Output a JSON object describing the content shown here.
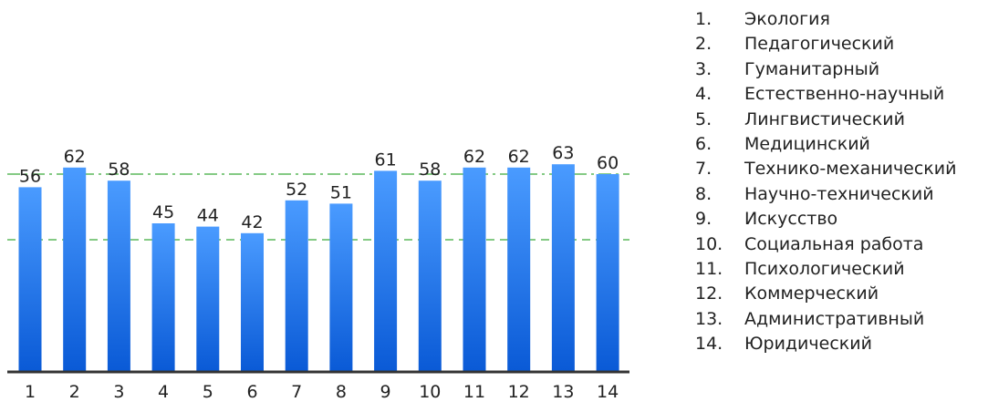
{
  "chart_data": {
    "type": "bar",
    "categories": [
      "1",
      "2",
      "3",
      "4",
      "5",
      "6",
      "7",
      "8",
      "9",
      "10",
      "11",
      "12",
      "13",
      "14"
    ],
    "values": [
      56,
      62,
      58,
      45,
      44,
      42,
      52,
      51,
      61,
      58,
      62,
      62,
      63,
      60
    ],
    "ylim": [
      0,
      100
    ],
    "reference_lines": [
      {
        "value": 60,
        "style": "dash-dot",
        "color": "#5cb85c"
      },
      {
        "value": 40,
        "style": "dashed",
        "color": "#5cb85c"
      }
    ],
    "bar_color_top": "#4a9bff",
    "bar_color_bottom": "#0a5ad6",
    "axis_color": "#333333",
    "grid": false,
    "legend_position": "right",
    "legend": [
      {
        "num": "1.",
        "label": "Экология"
      },
      {
        "num": "2.",
        "label": "Педагогический"
      },
      {
        "num": "3.",
        "label": "Гуманитарный"
      },
      {
        "num": "4.",
        "label": "Естественно-научный"
      },
      {
        "num": "5.",
        "label": "Лингвистический"
      },
      {
        "num": "6.",
        "label": "Медицинский"
      },
      {
        "num": "7.",
        "label": "Технико-механический"
      },
      {
        "num": "8.",
        "label": "Научно-технический"
      },
      {
        "num": "9.",
        "label": "Искусство"
      },
      {
        "num": "10.",
        "label": "Социальная работа"
      },
      {
        "num": "11.",
        "label": "Психологический"
      },
      {
        "num": "12.",
        "label": "Коммерческий"
      },
      {
        "num": "13.",
        "label": "Административный"
      },
      {
        "num": "14.",
        "label": "Юридический"
      }
    ]
  }
}
